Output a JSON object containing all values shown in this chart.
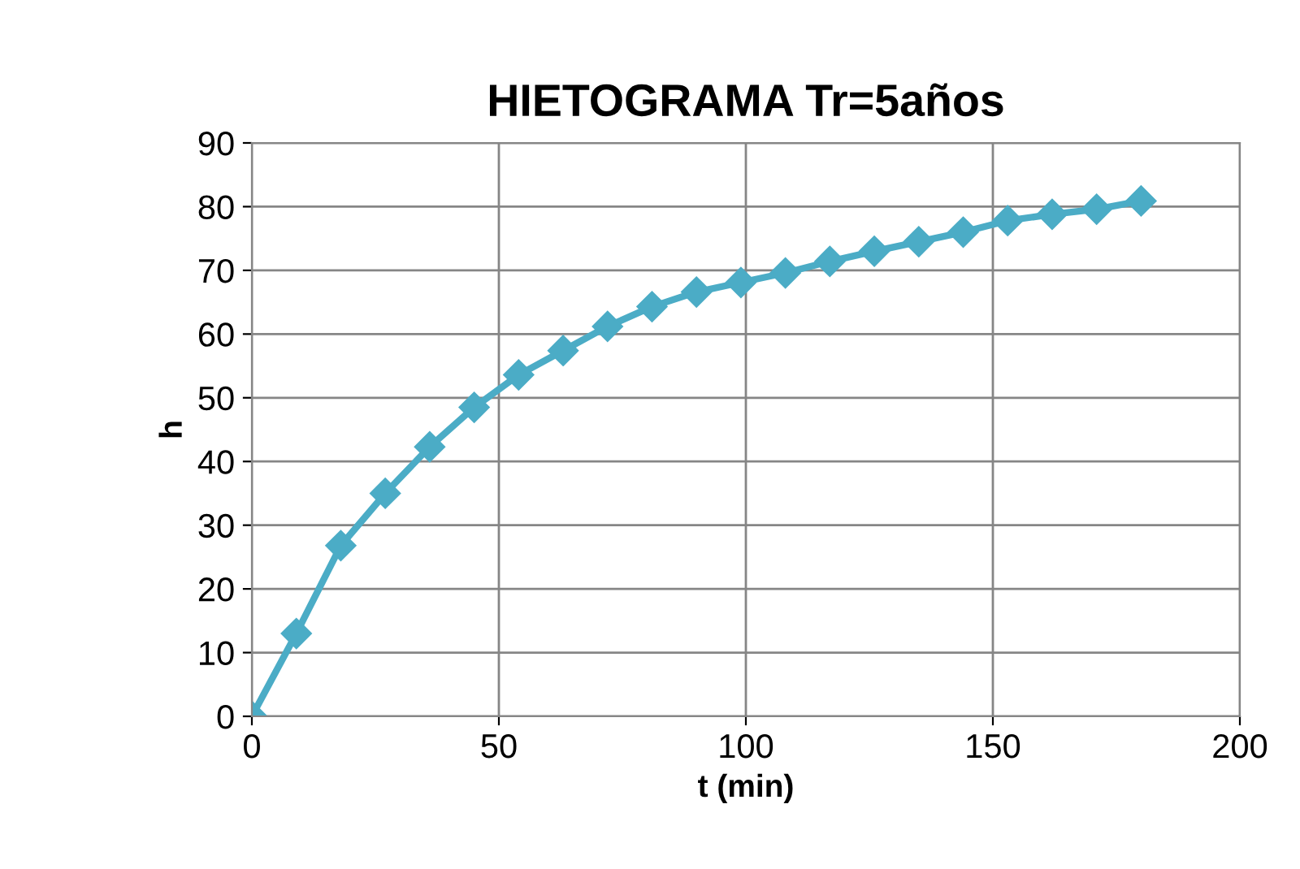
{
  "chart_data": {
    "type": "line",
    "title": "HIETOGRAMA Tr=5años",
    "xlabel": "t (min)",
    "ylabel": "h",
    "x": [
      0,
      9,
      18,
      27,
      36,
      45,
      54,
      63,
      72,
      81,
      90,
      99,
      108,
      117,
      126,
      135,
      144,
      153,
      162,
      171,
      180
    ],
    "series": [
      {
        "color": "#4bacc6",
        "values": [
          0,
          13,
          26.8,
          35,
          42.3,
          48.5,
          53.6,
          57.4,
          61.2,
          64.3,
          66.6,
          68.1,
          69.6,
          71.4,
          73,
          74.5,
          76,
          77.8,
          78.8,
          79.6,
          80.9
        ]
      }
    ],
    "xlim": [
      0,
      200
    ],
    "xticks": [
      0,
      50,
      100,
      150,
      200
    ],
    "ylim": [
      0,
      90
    ],
    "yticks": [
      0,
      10,
      20,
      30,
      40,
      50,
      60,
      70,
      80,
      90
    ],
    "grid": true,
    "legend": false,
    "marker": "diamond",
    "line_style": "solid"
  }
}
